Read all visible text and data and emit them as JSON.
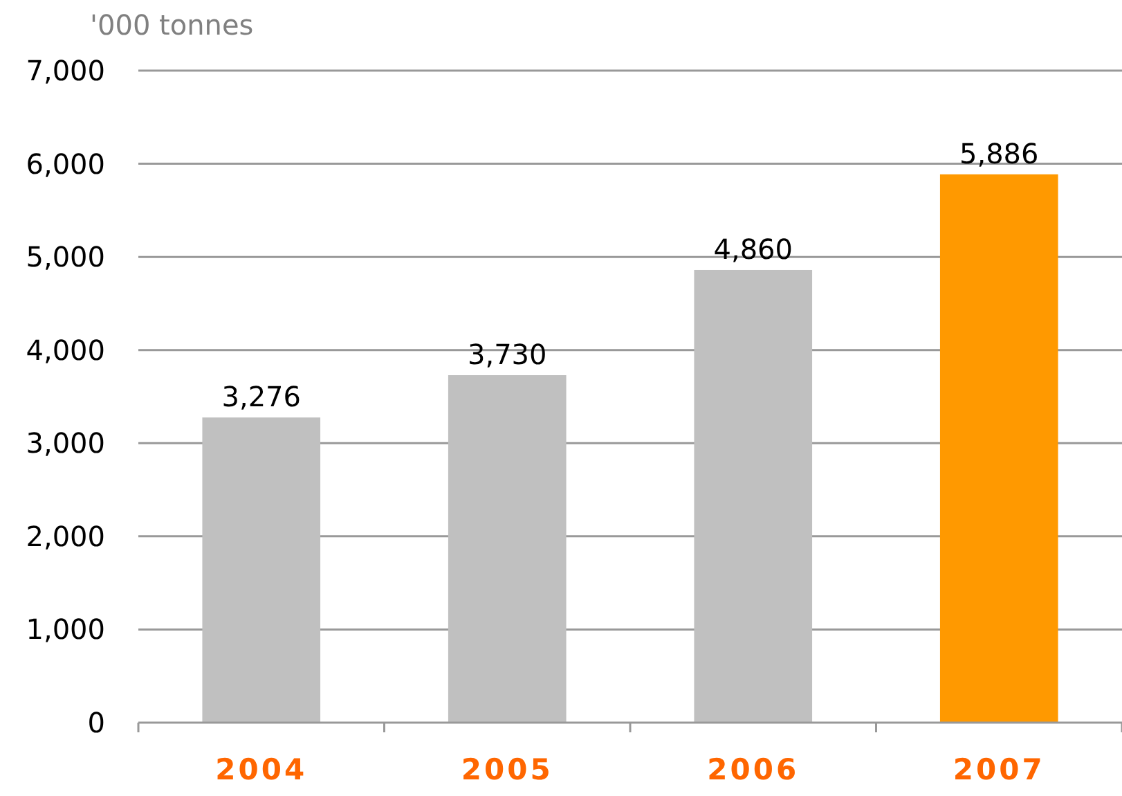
{
  "chart_data": {
    "type": "bar",
    "ylabel": "'000 tonnes",
    "categories": [
      "2004",
      "2005",
      "2006",
      "2007"
    ],
    "values": [
      3276,
      3730,
      4860,
      5886
    ],
    "colors": [
      "#c0c0c0",
      "#c0c0c0",
      "#c0c0c0",
      "#ff9900"
    ],
    "ylim": [
      0,
      7000
    ],
    "yticks": [
      {
        "value": 0,
        "label": "0"
      },
      {
        "value": 1000,
        "label": "1,000"
      },
      {
        "value": 2000,
        "label": "2,000"
      },
      {
        "value": 3000,
        "label": "3,000"
      },
      {
        "value": 4000,
        "label": "4,000"
      },
      {
        "value": 5000,
        "label": "5,000"
      },
      {
        "value": 6000,
        "label": "6,000"
      },
      {
        "value": 7000,
        "label": "7,000"
      }
    ],
    "value_labels": [
      "3,276",
      "3,730",
      "4,860",
      "5,886"
    ],
    "grid": "y"
  }
}
